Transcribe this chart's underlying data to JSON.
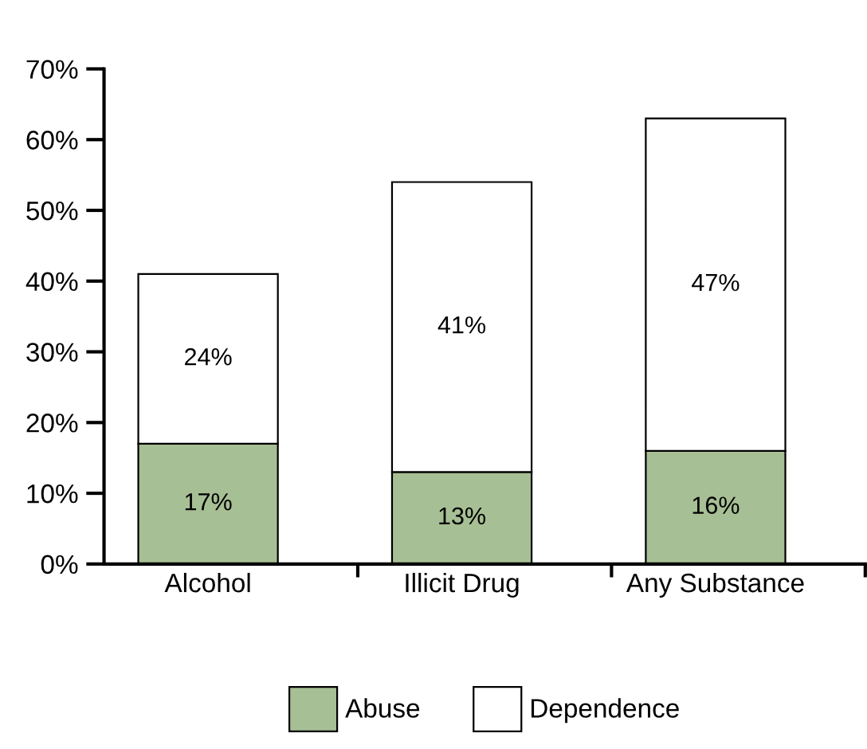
{
  "chart_data": {
    "type": "bar",
    "stacked": true,
    "categories": [
      "Alcohol",
      "Illicit Drug",
      "Any Substance"
    ],
    "series": [
      {
        "name": "Abuse",
        "color": "#a7bf94",
        "values": [
          17,
          13,
          16
        ],
        "value_labels": [
          "17%",
          "13%",
          "16%"
        ]
      },
      {
        "name": "Dependence",
        "color": "#ffffff",
        "values": [
          24,
          41,
          47
        ],
        "value_labels": [
          "24%",
          "41%",
          "47%"
        ]
      }
    ],
    "ylim": [
      0,
      70
    ],
    "yticks": [
      {
        "value": 0,
        "label": "0%"
      },
      {
        "value": 10,
        "label": "10%"
      },
      {
        "value": 20,
        "label": "20%"
      },
      {
        "value": 30,
        "label": "30%"
      },
      {
        "value": 40,
        "label": "40%"
      },
      {
        "value": 50,
        "label": "50%"
      },
      {
        "value": 60,
        "label": "60%"
      },
      {
        "value": 70,
        "label": "70%"
      }
    ],
    "grid": false,
    "legend": "bottom"
  }
}
